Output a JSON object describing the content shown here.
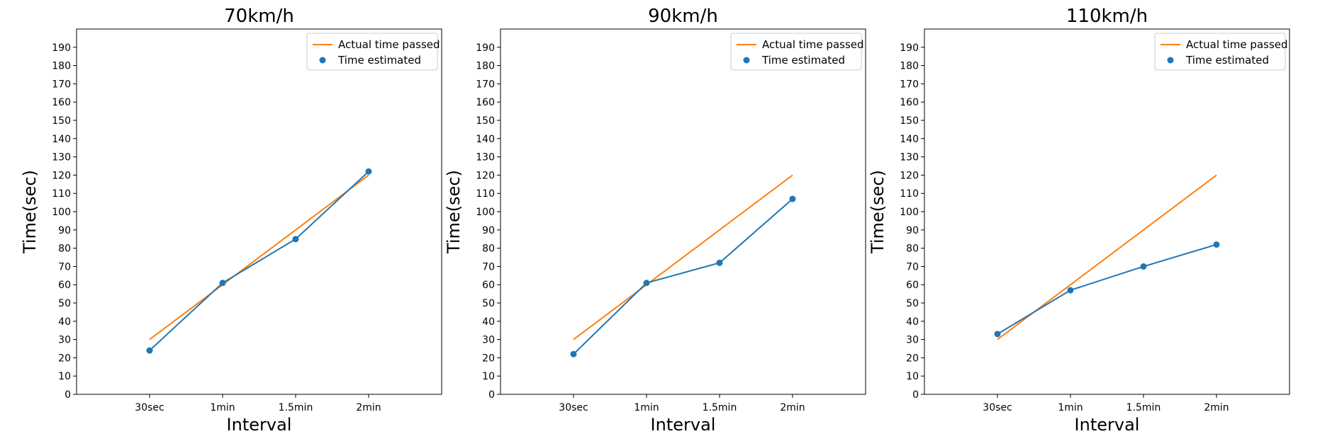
{
  "chart_data": [
    {
      "type": "line",
      "title": "70km/h",
      "xlabel": "Interval",
      "ylabel": "Time(sec)",
      "categories": [
        "30sec",
        "1min",
        "1.5min",
        "2min"
      ],
      "x": [
        30,
        60,
        90,
        120
      ],
      "xlim": [
        0,
        150
      ],
      "ylim": [
        0,
        200
      ],
      "yticks": [
        0,
        10,
        20,
        30,
        40,
        50,
        60,
        70,
        80,
        90,
        100,
        110,
        120,
        130,
        140,
        150,
        160,
        170,
        180,
        190
      ],
      "grid": false,
      "legend": "top-right",
      "series": [
        {
          "name": "Actual time passed",
          "style": "line",
          "color": "#ff7f0e",
          "values": [
            30,
            60,
            90,
            120
          ]
        },
        {
          "name": "Time estimated",
          "style": "line+markers",
          "color": "#1f77b4",
          "values": [
            24,
            61,
            85,
            122
          ]
        }
      ]
    },
    {
      "type": "line",
      "title": "90km/h",
      "xlabel": "Interval",
      "ylabel": "Time(sec)",
      "categories": [
        "30sec",
        "1min",
        "1.5min",
        "2min"
      ],
      "x": [
        30,
        60,
        90,
        120
      ],
      "xlim": [
        0,
        150
      ],
      "ylim": [
        0,
        200
      ],
      "yticks": [
        0,
        10,
        20,
        30,
        40,
        50,
        60,
        70,
        80,
        90,
        100,
        110,
        120,
        130,
        140,
        150,
        160,
        170,
        180,
        190
      ],
      "grid": false,
      "legend": "top-right",
      "series": [
        {
          "name": "Actual time passed",
          "style": "line",
          "color": "#ff7f0e",
          "values": [
            30,
            60,
            90,
            120
          ]
        },
        {
          "name": "Time estimated",
          "style": "line+markers",
          "color": "#1f77b4",
          "values": [
            22,
            61,
            72,
            107
          ]
        }
      ]
    },
    {
      "type": "line",
      "title": "110km/h",
      "xlabel": "Interval",
      "ylabel": "Time(sec)",
      "categories": [
        "30sec",
        "1min",
        "1.5min",
        "2min"
      ],
      "x": [
        30,
        60,
        90,
        120
      ],
      "xlim": [
        0,
        150
      ],
      "ylim": [
        0,
        200
      ],
      "yticks": [
        0,
        10,
        20,
        30,
        40,
        50,
        60,
        70,
        80,
        90,
        100,
        110,
        120,
        130,
        140,
        150,
        160,
        170,
        180,
        190
      ],
      "grid": false,
      "legend": "top-right",
      "series": [
        {
          "name": "Actual time passed",
          "style": "line",
          "color": "#ff7f0e",
          "values": [
            30,
            60,
            90,
            120
          ]
        },
        {
          "name": "Time estimated",
          "style": "line+markers",
          "color": "#1f77b4",
          "values": [
            33,
            57,
            70,
            82
          ]
        }
      ]
    }
  ]
}
